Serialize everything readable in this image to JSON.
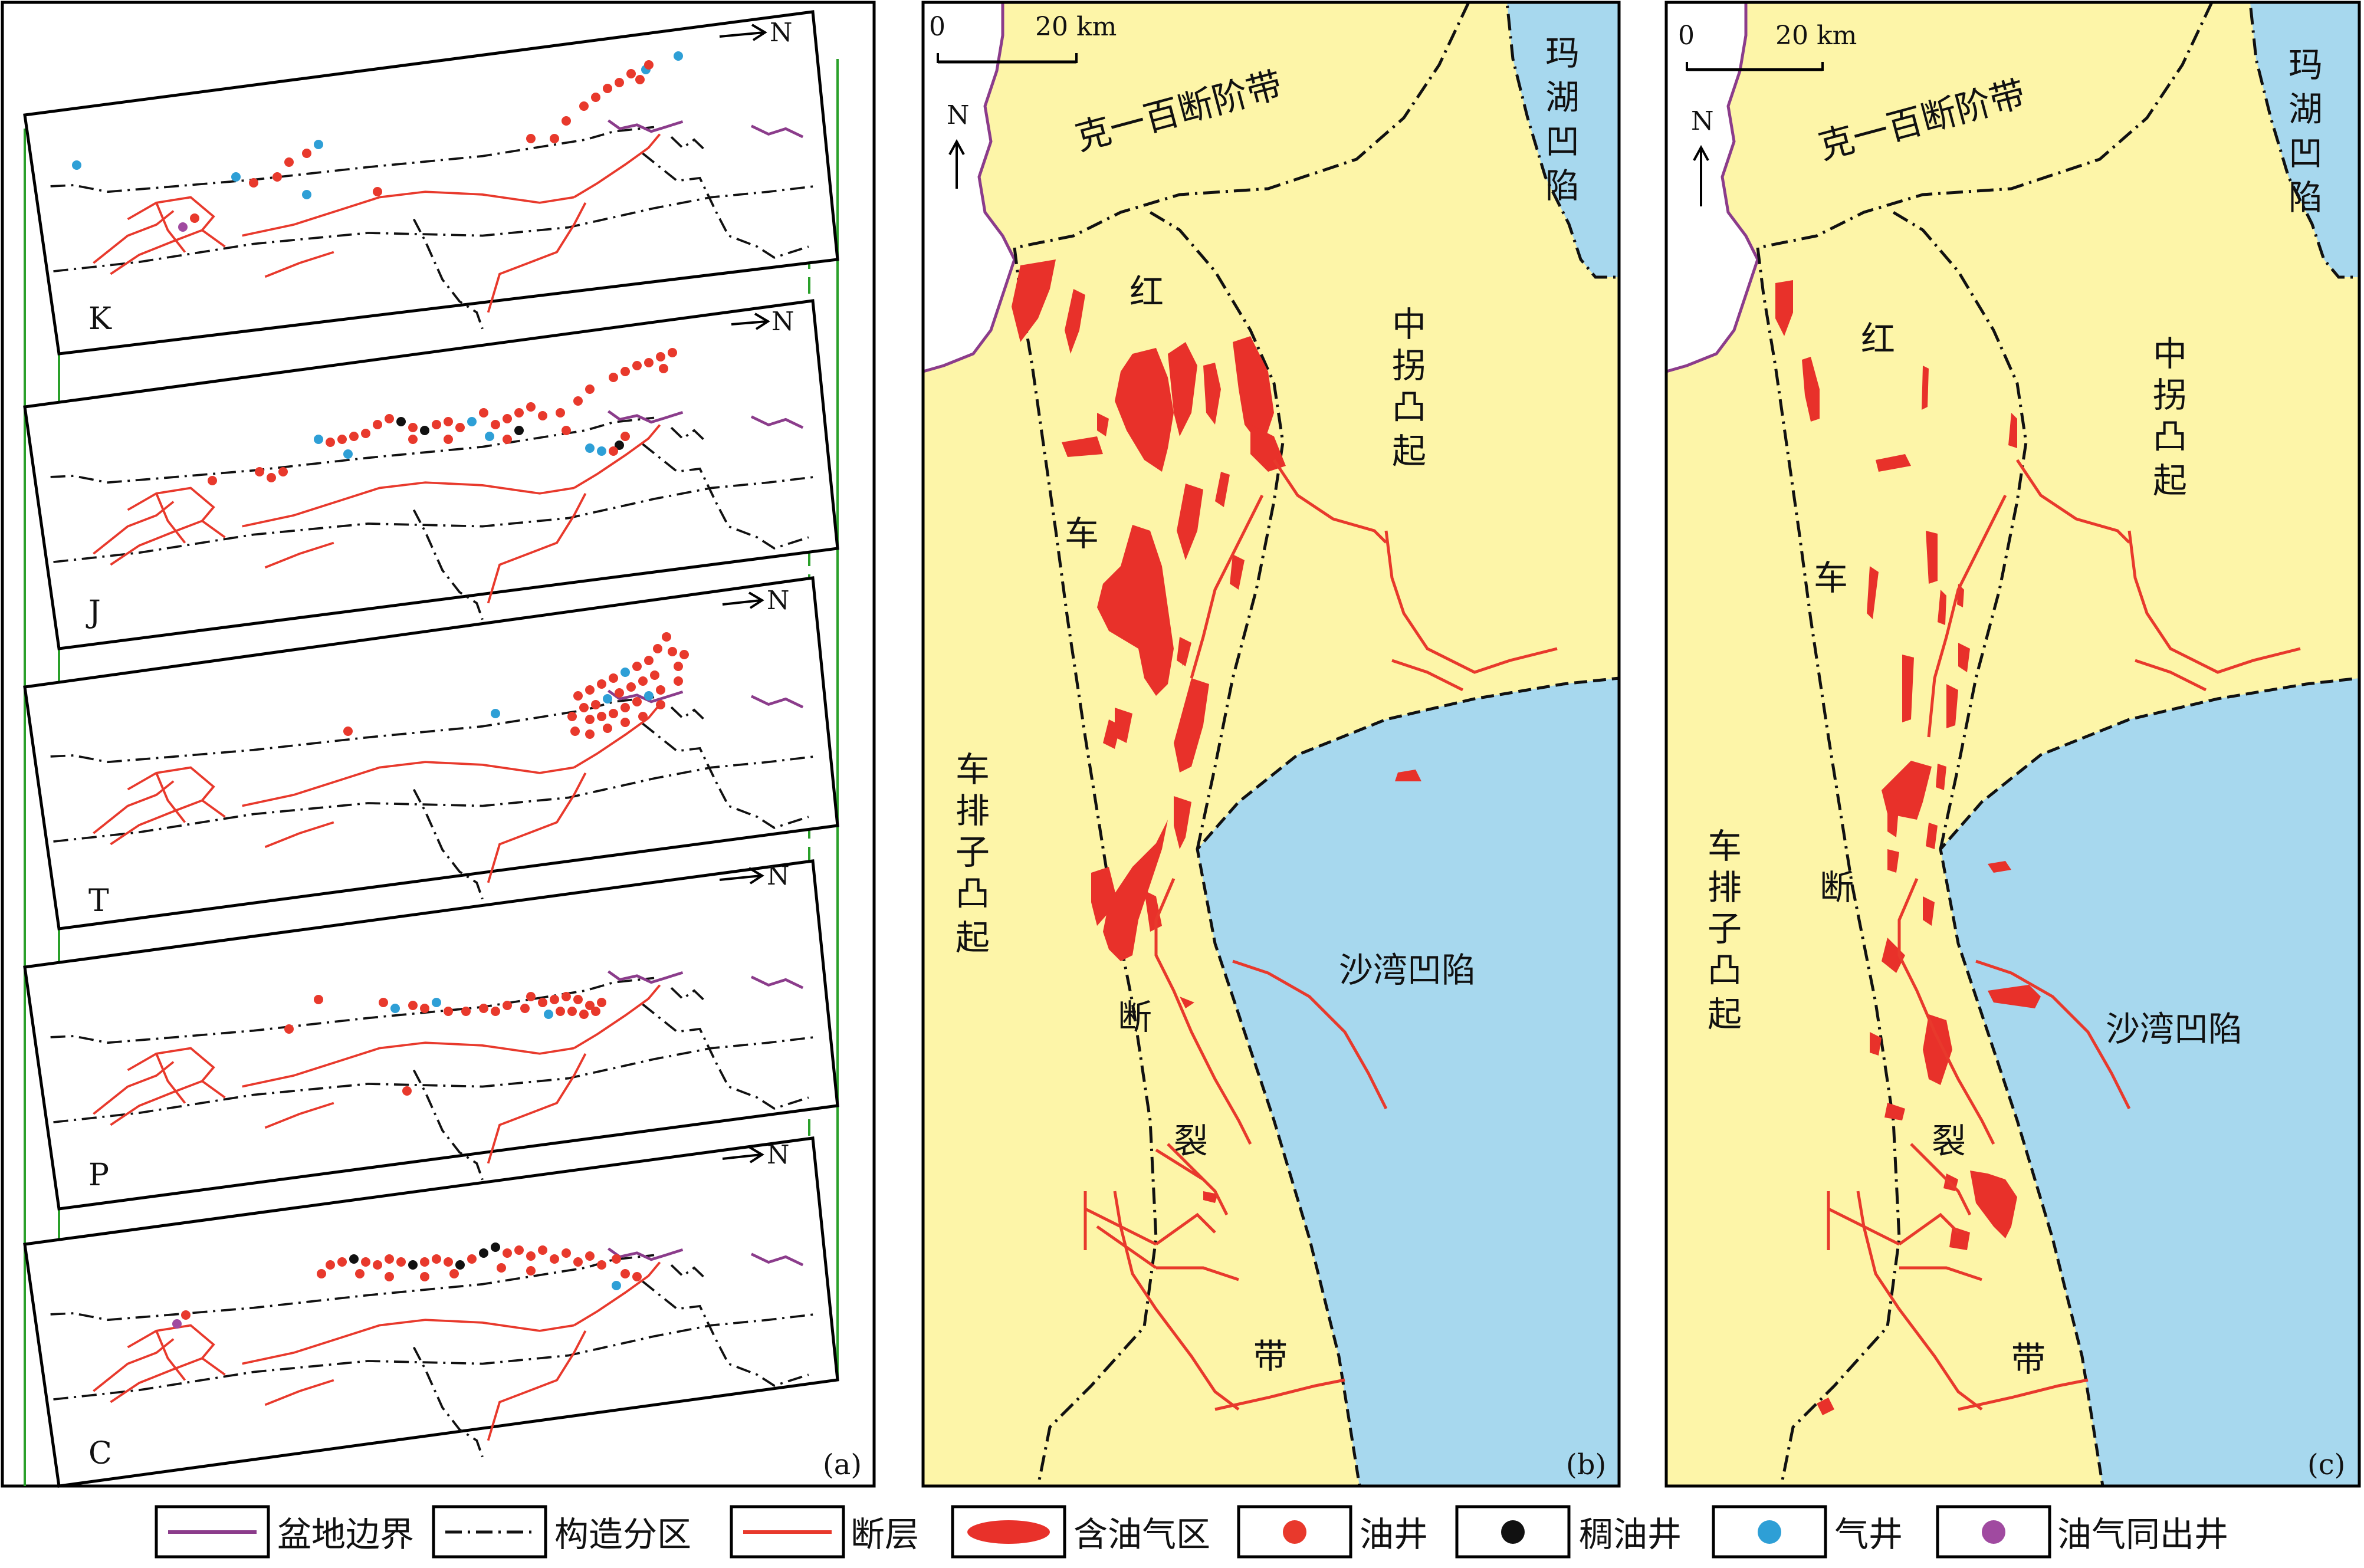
{
  "panels": {
    "a": {
      "tag": "(a)",
      "layers": [
        "K",
        "J",
        "T",
        "P",
        "C"
      ],
      "north": "N"
    },
    "b": {
      "tag": "(b)",
      "north": "N",
      "scale": {
        "zero": "0",
        "distance": "20 km"
      },
      "regions": {
        "kebai": "克一百断阶带",
        "mahu": [
          "玛",
          "湖",
          "凹",
          "陷"
        ],
        "zhongguai": [
          "中",
          "拐",
          "凸",
          "起"
        ],
        "chepaizi": [
          "车",
          "排",
          "子",
          "凸",
          "起"
        ],
        "shawan": "沙湾凹陷",
        "hongche": [
          "红",
          "车",
          "断",
          "裂",
          "带"
        ]
      }
    },
    "c": {
      "tag": "(c)",
      "north": "N",
      "scale": {
        "zero": "0",
        "distance": "20 km"
      },
      "regions": {
        "kebai": "克一百断阶带",
        "mahu": [
          "玛",
          "湖",
          "凹",
          "陷"
        ],
        "zhongguai": [
          "中",
          "拐",
          "凸",
          "起"
        ],
        "chepaizi": [
          "车",
          "排",
          "子",
          "凸",
          "起"
        ],
        "shawan": "沙湾凹陷",
        "hongche": [
          "红",
          "车",
          "断",
          "裂",
          "带"
        ]
      }
    }
  },
  "legend": [
    {
      "label": "盆地边界",
      "symbol": "line",
      "color": "#8b3c8b"
    },
    {
      "label": "构造分区",
      "symbol": "dashdot",
      "color": "#000000"
    },
    {
      "label": "断层",
      "symbol": "line",
      "color": "#e8392c"
    },
    {
      "label": "含油气区",
      "symbol": "ellipse",
      "color": "#e8392c"
    },
    {
      "label": "油井",
      "symbol": "dot",
      "color": "#e8392c"
    },
    {
      "label": "稠油井",
      "symbol": "dot",
      "color": "#111111"
    },
    {
      "label": "气井",
      "symbol": "dot",
      "color": "#2e9fd6"
    },
    {
      "label": "油气同出井",
      "symbol": "dot",
      "color": "#a04aa0"
    }
  ],
  "colors": {
    "land": "#fdf5a8",
    "depression": "#a7d8ee",
    "fault": "#e8392c",
    "oil_area": "#e8312a",
    "basin_boundary": "#8b3c8b",
    "green_link": "#2aa02a"
  }
}
